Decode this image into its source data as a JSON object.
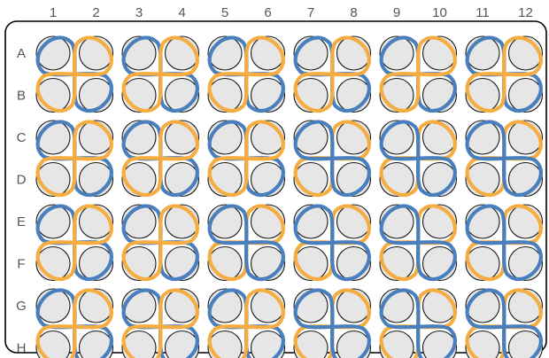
{
  "plate": {
    "columns": [
      "1",
      "2",
      "3",
      "4",
      "5",
      "6",
      "7",
      "8",
      "9",
      "10",
      "11",
      "12"
    ],
    "rows": [
      "A",
      "B",
      "C",
      "D",
      "E",
      "F",
      "G",
      "H"
    ]
  },
  "colors": {
    "blue": "#4a7fbd",
    "orange": "#f5ad42",
    "well_fill": "#e6e6e6",
    "well_stroke": "#1a1a1a",
    "border": "#000000",
    "label": "#555555"
  },
  "blocks": [
    {
      "r": 0,
      "c": 0,
      "front": "orange"
    },
    {
      "r": 0,
      "c": 1,
      "front": "orange"
    },
    {
      "r": 0,
      "c": 2,
      "front": "orange"
    },
    {
      "r": 0,
      "c": 3,
      "front": "orange"
    },
    {
      "r": 0,
      "c": 4,
      "front": "orange"
    },
    {
      "r": 0,
      "c": 5,
      "front": "orange"
    },
    {
      "r": 1,
      "c": 0,
      "front": "orange"
    },
    {
      "r": 1,
      "c": 1,
      "front": "orange"
    },
    {
      "r": 1,
      "c": 2,
      "front": "orange"
    },
    {
      "r": 1,
      "c": 3,
      "front": "blue"
    },
    {
      "r": 1,
      "c": 4,
      "front": "blue"
    },
    {
      "r": 1,
      "c": 5,
      "front": "blue"
    },
    {
      "r": 2,
      "c": 0,
      "front": "orange"
    },
    {
      "r": 2,
      "c": 1,
      "front": "orange"
    },
    {
      "r": 2,
      "c": 2,
      "front": "blue"
    },
    {
      "r": 2,
      "c": 3,
      "front": "blue"
    },
    {
      "r": 2,
      "c": 4,
      "front": "blue"
    },
    {
      "r": 2,
      "c": 5,
      "front": "blue"
    },
    {
      "r": 3,
      "c": 0,
      "front": "orange"
    },
    {
      "r": 3,
      "c": 1,
      "front": "orange"
    },
    {
      "r": 3,
      "c": 2,
      "front": "orange"
    },
    {
      "r": 3,
      "c": 3,
      "front": "blue"
    },
    {
      "r": 3,
      "c": 4,
      "front": "blue"
    },
    {
      "r": 3,
      "c": 5,
      "front": "blue"
    }
  ]
}
